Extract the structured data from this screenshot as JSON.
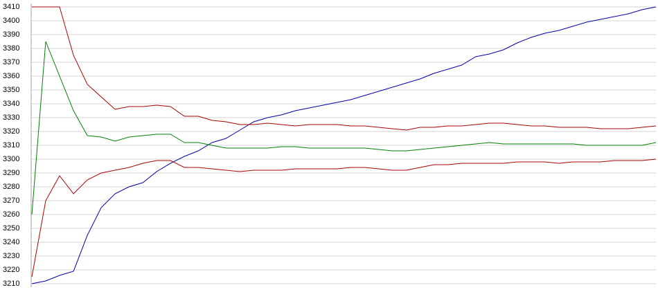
{
  "chart_data": {
    "type": "line",
    "ylim": [
      3210,
      3410
    ],
    "yticks": [
      3210,
      3220,
      3230,
      3240,
      3250,
      3260,
      3270,
      3280,
      3290,
      3300,
      3310,
      3320,
      3330,
      3340,
      3350,
      3360,
      3370,
      3380,
      3390,
      3400,
      3410
    ],
    "grid": true,
    "series": [
      {
        "color": "#0000aa",
        "values": [
          3210,
          3212,
          3216,
          3219,
          3245,
          3265,
          3275,
          3280,
          3283,
          3291,
          3297,
          3302,
          3306,
          3312,
          3315,
          3321,
          3327,
          3330,
          3332,
          3335,
          3337,
          3339,
          3341,
          3343,
          3346,
          3349,
          3352,
          3355,
          3358,
          3362,
          3365,
          3368,
          3374,
          3376,
          3379,
          3384,
          3388,
          3391,
          3393,
          3396,
          3399,
          3401,
          3403,
          3405,
          3408,
          3410
        ]
      },
      {
        "color": "#aa0000",
        "values": [
          3410,
          3410,
          3410,
          3375,
          3354,
          3345,
          3336,
          3338,
          3338,
          3339,
          3338,
          3331,
          3331,
          3328,
          3327,
          3325,
          3325,
          3326,
          3325,
          3324,
          3325,
          3325,
          3325,
          3324,
          3324,
          3323,
          3322,
          3321,
          3323,
          3323,
          3324,
          3324,
          3325,
          3326,
          3326,
          3325,
          3324,
          3324,
          3323,
          3323,
          3323,
          3322,
          3322,
          3322,
          3323,
          3324
        ]
      },
      {
        "color": "#008000",
        "values": [
          3260,
          3385,
          3360,
          3335,
          3317,
          3316,
          3313,
          3316,
          3317,
          3318,
          3318,
          3312,
          3312,
          3310,
          3308,
          3308,
          3308,
          3308,
          3309,
          3309,
          3308,
          3308,
          3308,
          3308,
          3308,
          3307,
          3306,
          3306,
          3307,
          3308,
          3309,
          3310,
          3311,
          3312,
          3311,
          3311,
          3311,
          3311,
          3311,
          3311,
          3310,
          3310,
          3310,
          3310,
          3310,
          3312
        ]
      },
      {
        "color": "#aa0000",
        "values": [
          3215,
          3270,
          3288,
          3275,
          3285,
          3290,
          3292,
          3294,
          3297,
          3299,
          3299,
          3294,
          3294,
          3293,
          3292,
          3291,
          3292,
          3292,
          3292,
          3293,
          3293,
          3293,
          3293,
          3294,
          3294,
          3293,
          3292,
          3292,
          3294,
          3296,
          3296,
          3297,
          3297,
          3297,
          3297,
          3298,
          3298,
          3298,
          3297,
          3298,
          3298,
          3298,
          3299,
          3299,
          3299,
          3300
        ]
      }
    ]
  }
}
